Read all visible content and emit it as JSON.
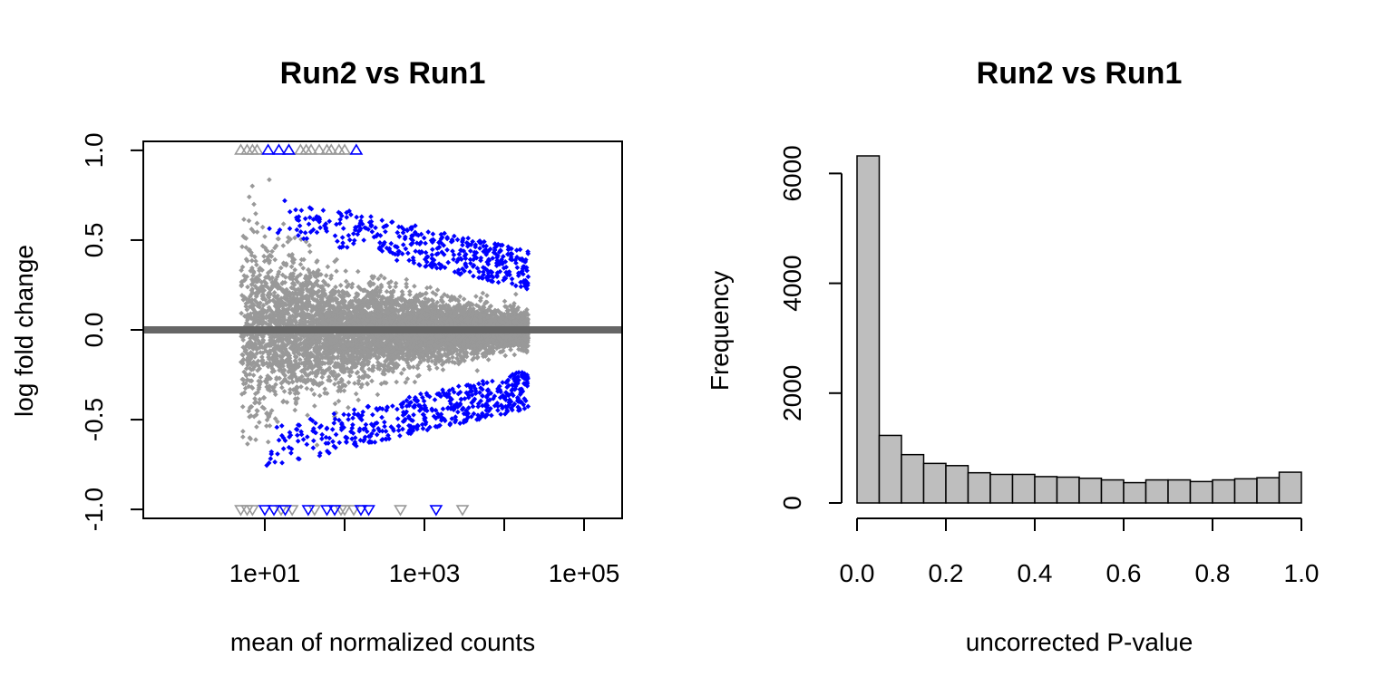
{
  "chart_data": [
    {
      "type": "scatter",
      "title": "Run2 vs Run1",
      "xlabel": "mean of normalized counts",
      "ylabel": "log fold change",
      "x_scale": "log10",
      "xlim": [
        0.3,
        300000
      ],
      "ylim": [
        -1.05,
        1.05
      ],
      "x_ticks": [
        10,
        100,
        1000,
        10000,
        100000
      ],
      "x_tick_labels": [
        "1e+01",
        "1e+03",
        "1e+05"
      ],
      "x_labeled_ticks": [
        10,
        1000,
        100000
      ],
      "y_ticks": [
        -1.0,
        -0.5,
        0.0,
        0.5,
        1.0
      ],
      "y_tick_labels": [
        "-1.0",
        "-0.5",
        "0.0",
        "0.5",
        "1.0"
      ],
      "hline": 0,
      "colors": {
        "not_significant": "#999999",
        "significant": "#0000ff",
        "zero_line": "#666666"
      },
      "series": [
        {
          "status": "not significant",
          "points_summary": "dense cloud for mean counts 5 to 10000, spread about 0.6 at low counts narrowing to about 0.1 at high counts",
          "out_of_range_up_x": [
            5,
            6,
            7,
            8,
            20,
            28,
            33,
            38,
            48,
            60,
            68,
            85,
            100
          ],
          "out_of_range_down_x": [
            5,
            6,
            7,
            16,
            22,
            42,
            90,
            100,
            130,
            500,
            3000
          ]
        },
        {
          "status": "significant",
          "points_summary": "blue points mostly at |lfc| 0.2-0.6 for mean counts 10 to 20000",
          "out_of_range_up_x": [
            11,
            15,
            20,
            140
          ],
          "out_of_range_down_x": [
            10,
            13,
            18,
            35,
            60,
            75,
            160,
            200,
            1400
          ]
        }
      ]
    },
    {
      "type": "bar",
      "subtype": "histogram",
      "title": "Run2 vs Run1",
      "xlabel": "uncorrected P-value",
      "ylabel": "Frequency",
      "bin_edges": [
        0.0,
        0.05,
        0.1,
        0.15,
        0.2,
        0.25,
        0.3,
        0.35,
        0.4,
        0.45,
        0.5,
        0.55,
        0.6,
        0.65,
        0.7,
        0.75,
        0.8,
        0.85,
        0.9,
        0.95,
        1.0
      ],
      "values": [
        6320,
        1230,
        880,
        720,
        680,
        550,
        520,
        520,
        480,
        470,
        450,
        420,
        370,
        420,
        420,
        390,
        420,
        440,
        460,
        560
      ],
      "xlim": [
        0,
        1
      ],
      "ylim": [
        0,
        6320
      ],
      "x_ticks": [
        0.0,
        0.2,
        0.4,
        0.6,
        0.8,
        1.0
      ],
      "x_tick_labels": [
        "0.0",
        "0.2",
        "0.4",
        "0.6",
        "0.8",
        "1.0"
      ],
      "y_ticks": [
        0,
        2000,
        4000,
        6000
      ],
      "y_tick_labels": [
        "0",
        "2000",
        "4000",
        "6000"
      ],
      "colors": {
        "bar_fill": "#bebebe",
        "bar_stroke": "#000000"
      }
    }
  ]
}
